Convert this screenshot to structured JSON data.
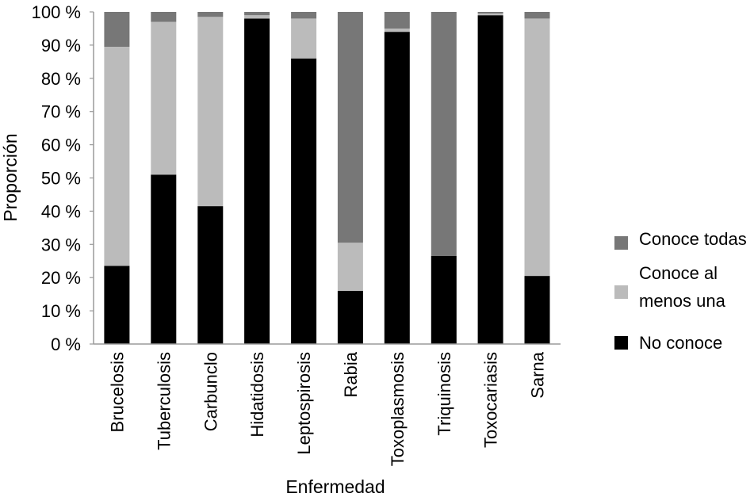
{
  "chart_data": {
    "type": "bar",
    "stacked": true,
    "percent": true,
    "xlabel": "Enfermedad",
    "ylabel": "Proporción",
    "ylim": [
      0,
      100
    ],
    "ytick_labels": [
      "0 %",
      "10 %",
      "20 %",
      "30 %",
      "40 %",
      "50 %",
      "60 %",
      "70 %",
      "80 %",
      "90 %",
      "100 %"
    ],
    "categories": [
      "Brucelosis",
      "Tuberculosis",
      "Carbunclo",
      "Hidatidosis",
      "Leptospirosis",
      "Rabia",
      "Toxoplasmosis",
      "Triquinosis",
      "Toxocariasis",
      "Sarna"
    ],
    "series": [
      {
        "name": "No conoce",
        "color": "#000000",
        "values": [
          23.5,
          51,
          41.5,
          98,
          86,
          16,
          94,
          26.5,
          99,
          20.5
        ]
      },
      {
        "name": "Conoce al menos una",
        "color": "#bbbbbb",
        "values": [
          66,
          46,
          57,
          1,
          12,
          14.5,
          1,
          0,
          0.5,
          77.5
        ]
      },
      {
        "name": "Conoce todas",
        "color": "#777777",
        "values": [
          10.5,
          3,
          1.5,
          1,
          2,
          69.5,
          5,
          73.5,
          0.5,
          2
        ]
      }
    ],
    "legend": {
      "position": "right",
      "items": [
        {
          "series": 2,
          "lines": [
            "Conoce todas"
          ]
        },
        {
          "series": 1,
          "lines": [
            "Conoce al",
            "menos una"
          ]
        },
        {
          "series": 0,
          "lines": [
            "No conoce"
          ]
        }
      ]
    },
    "grid": false
  }
}
